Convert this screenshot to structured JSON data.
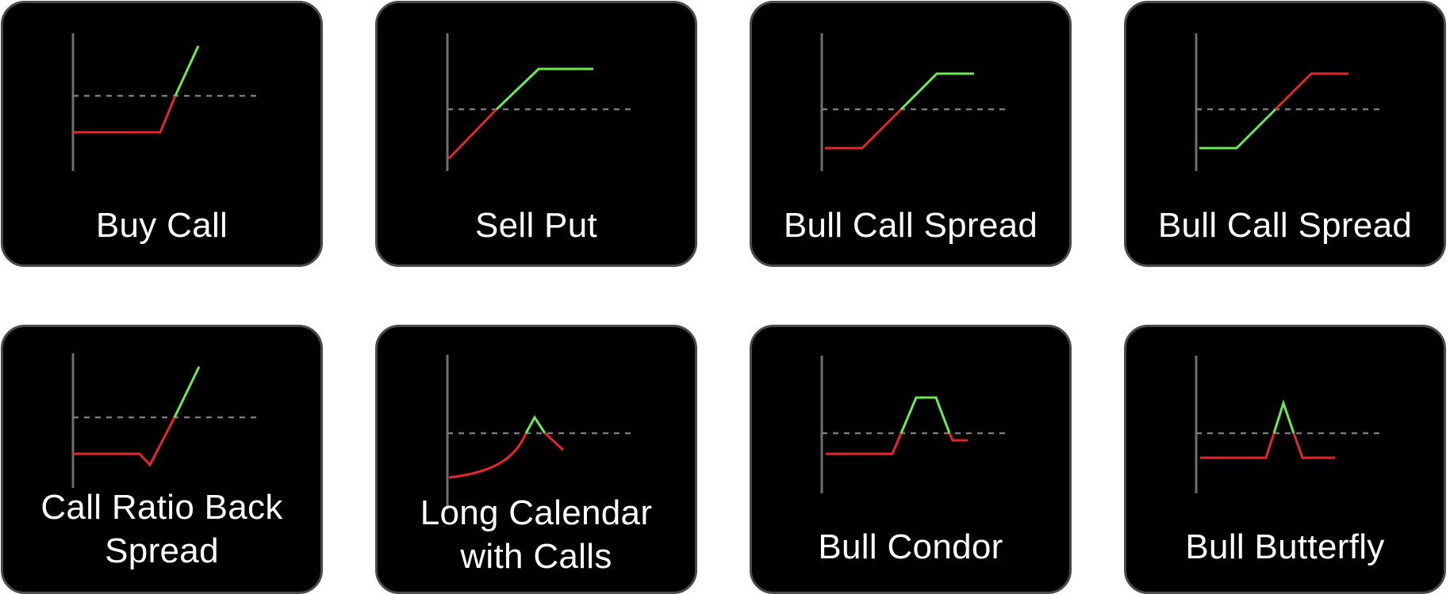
{
  "colors": {
    "profit": "#6bea51",
    "loss": "#e5262a",
    "axis": "#6e6e6e",
    "breakeven": "#7a7a7a",
    "card_background": "#000000",
    "card_border": "#4a4a4a",
    "label": "#ffffff"
  },
  "strategies": [
    {
      "name": "Buy Call"
    },
    {
      "name": "Sell Put"
    },
    {
      "name": "Bull Call Spread"
    },
    {
      "name": "Bull Call Spread"
    },
    {
      "name": "Call Ratio Back Spread",
      "lines": [
        "Call Ratio Back",
        "Spread"
      ]
    },
    {
      "name": "Long Calendar with Calls",
      "lines": [
        "Long Calendar",
        "with Calls"
      ]
    },
    {
      "name": "Bull Condor"
    },
    {
      "name": "Bull Butterfly"
    }
  ]
}
